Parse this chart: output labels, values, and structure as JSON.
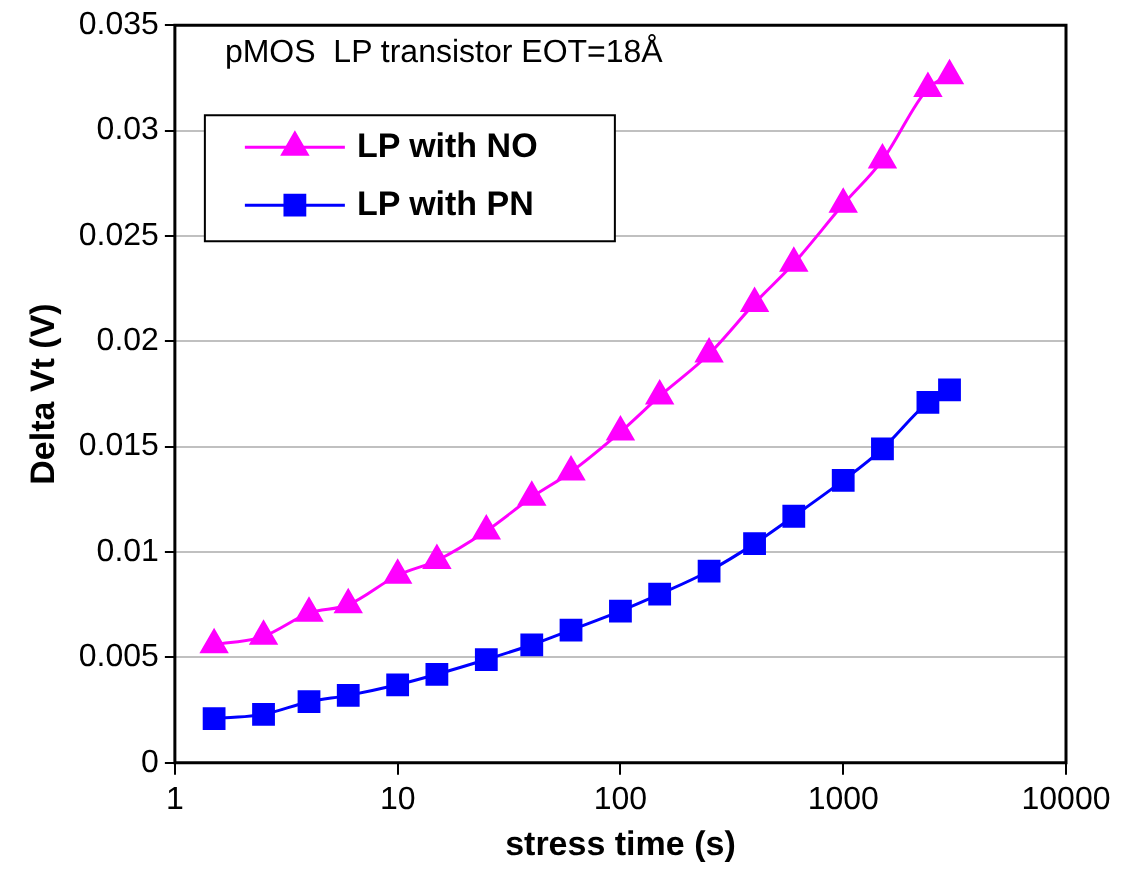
{
  "chart_data": {
    "type": "line",
    "title": "pMOS  LP transistor EOT=18Å",
    "xlabel": "stress time (s)",
    "ylabel": "Delta Vt (V)",
    "x": [
      1.5,
      2.5,
      4,
      6,
      10,
      15,
      25,
      40,
      60,
      100,
      150,
      250,
      400,
      600,
      1000,
      1500,
      2400,
      3000
    ],
    "series": [
      {
        "name": "LP with NO",
        "color": "#ff00ff",
        "marker": "triangle",
        "values": [
          0.0056,
          0.006,
          0.0071,
          0.0075,
          0.0089,
          0.0096,
          0.011,
          0.0126,
          0.0138,
          0.0157,
          0.0174,
          0.0194,
          0.0218,
          0.0237,
          0.0265,
          0.0286,
          0.032,
          0.0326
        ]
      },
      {
        "name": "LP with PN",
        "color": "#0000ff",
        "marker": "square",
        "values": [
          0.0021,
          0.0023,
          0.0029,
          0.0032,
          0.0037,
          0.0042,
          0.0049,
          0.0056,
          0.0063,
          0.0072,
          0.008,
          0.0091,
          0.0104,
          0.0117,
          0.0134,
          0.0149,
          0.0171,
          0.0177
        ]
      }
    ],
    "log": "x",
    "xlim": [
      1,
      10000
    ],
    "xticks": [
      1,
      10,
      100,
      1000,
      10000
    ],
    "ylim": [
      0,
      0.035
    ],
    "yticks": [
      0,
      0.005,
      0.01,
      0.015,
      0.02,
      0.025,
      0.03,
      0.035
    ],
    "grid": "y",
    "legend": "top left",
    "line_style": "solid"
  }
}
